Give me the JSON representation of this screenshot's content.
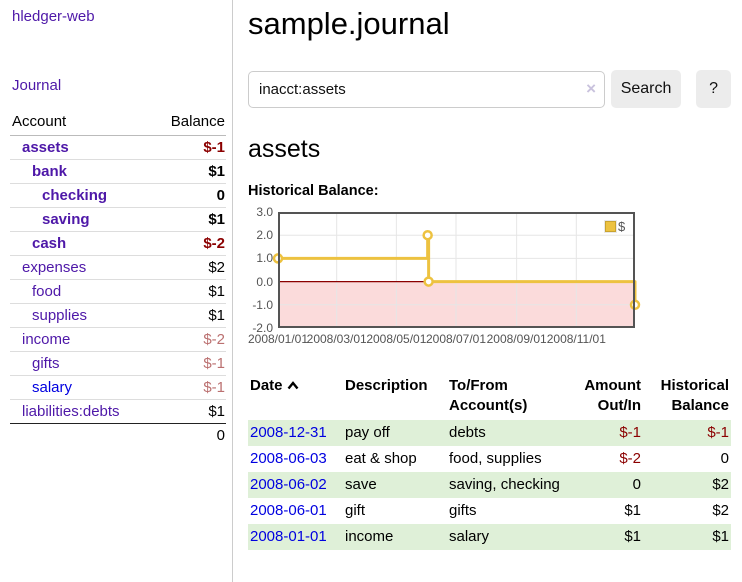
{
  "app": {
    "title": "hledger-web"
  },
  "sidebar": {
    "nav_journal": "Journal",
    "accounts_table": {
      "header_account": "Account",
      "header_balance": "Balance",
      "rows": [
        {
          "account": "assets",
          "balance": "$-1",
          "indent": 1,
          "bold": true,
          "negative": true,
          "muted": false,
          "link": "purple"
        },
        {
          "account": "bank",
          "balance": "$1",
          "indent": 2,
          "bold": true,
          "negative": false,
          "muted": false,
          "link": "purple"
        },
        {
          "account": "checking",
          "balance": "0",
          "indent": 3,
          "bold": true,
          "negative": false,
          "muted": false,
          "link": "purple"
        },
        {
          "account": "saving",
          "balance": "$1",
          "indent": 3,
          "bold": true,
          "negative": false,
          "muted": false,
          "link": "purple"
        },
        {
          "account": "cash",
          "balance": "$-2",
          "indent": 2,
          "bold": true,
          "negative": true,
          "muted": false,
          "link": "purple"
        },
        {
          "account": "expenses",
          "balance": "$2",
          "indent": 1,
          "bold": false,
          "negative": false,
          "muted": false,
          "link": "purple"
        },
        {
          "account": "food",
          "balance": "$1",
          "indent": 2,
          "bold": false,
          "negative": false,
          "muted": false,
          "link": "purple"
        },
        {
          "account": "supplies",
          "balance": "$1",
          "indent": 2,
          "bold": false,
          "negative": false,
          "muted": false,
          "link": "purple"
        },
        {
          "account": "income",
          "balance": "$-2",
          "indent": 1,
          "bold": false,
          "negative": true,
          "muted": true,
          "link": "purple"
        },
        {
          "account": "gifts",
          "balance": "$-1",
          "indent": 2,
          "bold": false,
          "negative": true,
          "muted": true,
          "link": "purple"
        },
        {
          "account": "salary",
          "balance": "$-1",
          "indent": 2,
          "bold": false,
          "negative": true,
          "muted": true,
          "link": "blue"
        },
        {
          "account": "liabilities:debts",
          "balance": "$1",
          "indent": 1,
          "bold": false,
          "negative": false,
          "muted": false,
          "link": "purple"
        }
      ],
      "total": "0"
    }
  },
  "main": {
    "page_title": "sample.journal",
    "search": {
      "value": "inacct:assets",
      "clear_icon": "×",
      "button": "Search",
      "help_button": "?"
    },
    "account_heading": "assets",
    "chart_label": "Historical Balance:"
  },
  "chart_data": {
    "type": "line",
    "mode": "step",
    "title": "Historical Balance of assets",
    "x_range": [
      "2008-01-01",
      "2008-12-31"
    ],
    "ylim": [
      -2,
      3
    ],
    "y_ticks": [
      3.0,
      2.0,
      1.0,
      0.0,
      -1.0,
      -2.0
    ],
    "x_ticks": [
      {
        "date": "2008-01-01",
        "label": "2008/01/01"
      },
      {
        "date": "2008-03-01",
        "label": "2008/03/01"
      },
      {
        "date": "2008-05-01",
        "label": "2008/05/01"
      },
      {
        "date": "2008-07-01",
        "label": "2008/07/01"
      },
      {
        "date": "2008-09-01",
        "label": "2008/09/01"
      },
      {
        "date": "2008-11-01",
        "label": "2008/11/01"
      }
    ],
    "series": [
      {
        "name": "$",
        "color": "#edc240",
        "points": [
          {
            "date": "2008-01-01",
            "value": 1.0
          },
          {
            "date": "2008-06-02",
            "value": 2.0
          },
          {
            "date": "2008-06-03",
            "value": 0.0
          },
          {
            "date": "2008-12-31",
            "value": -1.0
          }
        ]
      }
    ],
    "legend": {
      "label": "$",
      "position": "top-right"
    },
    "grid": true
  },
  "register_table": {
    "headers": [
      {
        "label": "Date",
        "align": "left",
        "sort": "asc"
      },
      {
        "label": "Description",
        "align": "left"
      },
      {
        "label": "To/From Account(s)",
        "align": "left"
      },
      {
        "label": "Amount Out/In",
        "align": "right"
      },
      {
        "label": "Historical Balance",
        "align": "right"
      }
    ],
    "rows": [
      {
        "date": "2008-12-31",
        "description": "pay off",
        "accounts": "debts",
        "amount": "$-1",
        "amount_negative": true,
        "balance": "$-1",
        "balance_negative": true,
        "shaded": true
      },
      {
        "date": "2008-06-03",
        "description": "eat & shop",
        "accounts": "food, supplies",
        "amount": "$-2",
        "amount_negative": true,
        "balance": "0",
        "balance_negative": false,
        "shaded": false
      },
      {
        "date": "2008-06-02",
        "description": "save",
        "accounts": "saving, checking",
        "amount": "0",
        "amount_negative": false,
        "balance": "$2",
        "balance_negative": false,
        "shaded": true
      },
      {
        "date": "2008-06-01",
        "description": "gift",
        "accounts": "gifts",
        "amount": "$1",
        "amount_negative": false,
        "balance": "$2",
        "balance_negative": false,
        "shaded": false
      },
      {
        "date": "2008-01-01",
        "description": "income",
        "accounts": "salary",
        "amount": "$1",
        "amount_negative": false,
        "balance": "$1",
        "balance_negative": false,
        "shaded": true
      }
    ]
  },
  "colors": {
    "link_purple": "#4e18a8",
    "link_blue": "#0000e0",
    "negative_strong": "#8b0000",
    "negative_muted": "#bb7070",
    "row_shaded_green": "#dff0d8",
    "chart_line": "#edc240",
    "chart_negative_region": "#fbdbdb",
    "chart_zero_line": "#8b0000",
    "chart_grid": "#e6e6e6",
    "chart_border": "#545454",
    "chart_tick_text": "#545454"
  }
}
